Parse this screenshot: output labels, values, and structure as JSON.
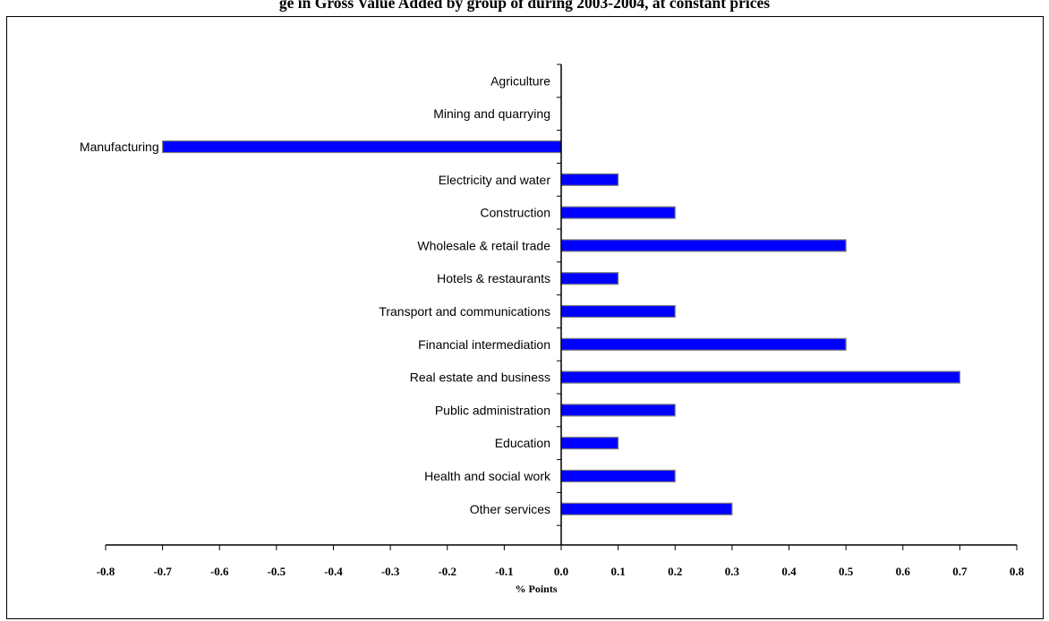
{
  "title": "ge in Gross Value Added by group of during 2003-2004, at constant prices",
  "chart_data": {
    "type": "bar",
    "orientation": "horizontal",
    "categories": [
      "Agriculture",
      "Mining and quarrying",
      "Manufacturing",
      "Electricity and  water",
      "Construction",
      "Wholesale & retail trade",
      "Hotels & restaurants",
      "Transport and communications",
      "Financial intermediation",
      "Real estate and business",
      "Public administration",
      "Education",
      "Health and social work",
      "Other services"
    ],
    "values": [
      0,
      0,
      -0.7,
      0.1,
      0.2,
      0.5,
      0.1,
      0.2,
      0.5,
      0.7,
      0.2,
      0.1,
      0.2,
      0.3
    ],
    "xlabel": "% Points",
    "xlim": [
      -0.8,
      0.8
    ],
    "xticks": [
      "-0.8",
      "-0.7",
      "-0.6",
      "-0.5",
      "-0.4",
      "-0.3",
      "-0.2",
      "-0.1",
      "0.0",
      "0.1",
      "0.2",
      "0.3",
      "0.4",
      "0.5",
      "0.6",
      "0.7",
      "0.8"
    ],
    "grid": false,
    "legend": "none",
    "bar_color": "#0000FF"
  }
}
